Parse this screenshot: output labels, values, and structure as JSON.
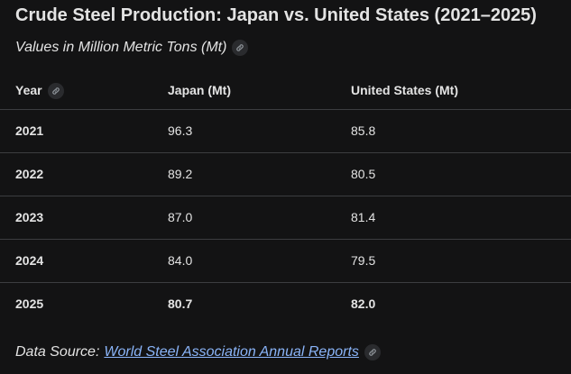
{
  "title": "Crude Steel Production: Japan vs. United States (2021–2025)",
  "subtitle": "Values in Million Metric Tons (Mt)",
  "table": {
    "headers": [
      "Year",
      "Japan (Mt)",
      "United States (Mt)"
    ],
    "rows": [
      [
        "2021",
        "96.3",
        "85.8"
      ],
      [
        "2022",
        "89.2",
        "80.5"
      ],
      [
        "2023",
        "87.0",
        "81.4"
      ],
      [
        "2024",
        "84.0",
        "79.5"
      ],
      [
        "2025",
        "80.7",
        "82.0"
      ]
    ]
  },
  "footer": {
    "label": "Data Source:",
    "link_text": "World Steel Association Annual Reports"
  },
  "colors": {
    "background": "#131314",
    "text": "#e3e3e3",
    "link": "#8ab4f8",
    "divider": "#3c3d40"
  },
  "icons": [
    "link-icon"
  ]
}
